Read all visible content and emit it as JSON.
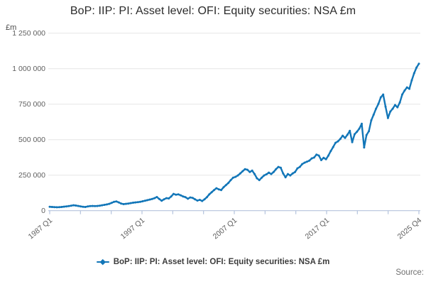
{
  "header": {
    "title": "BoP: IIP: PI: Asset level: OFI: Equity securities: NSA £m"
  },
  "axis_unit_label": "£m",
  "legend": {
    "label": "BoP: IIP: PI: Asset level: OFI: Equity securities: NSA £m"
  },
  "footer": {
    "source_label": "Source:"
  },
  "chart_data": {
    "type": "line",
    "title": "BoP: IIP: PI: Asset level: OFI: Equity securities: NSA £m",
    "xlabel": "",
    "ylabel": "£m",
    "x_start": "1987 Q1",
    "x_end": "2025 Q4",
    "frequency": "quarterly",
    "num_points": 156,
    "num_x_ticks": 13,
    "x_tick_labels": [
      {
        "tick_index": 0,
        "label": "1987 Q1"
      },
      {
        "tick_index": 3,
        "label": "1997 Q1"
      },
      {
        "tick_index": 6,
        "label": "2007 Q1"
      },
      {
        "tick_index": 9,
        "label": "2017 Q1"
      },
      {
        "tick_index": 12,
        "label": "2025 Q4"
      }
    ],
    "y_ticks": [
      0,
      250000,
      500000,
      750000,
      1000000,
      1250000
    ],
    "y_tick_label_format": "space-separated thousands",
    "ylim": [
      0,
      1250000
    ],
    "grid": "horizontal",
    "legend_position": "bottom",
    "colors": {
      "line": "#1276b8",
      "grid": "#e6e6e6",
      "axis": "#b4c3dd",
      "tick_label": "#5f5f5f",
      "title": "#2b2b2b"
    },
    "series": [
      {
        "name": "BoP: IIP: PI: Asset level: OFI: Equity securities: NSA £m",
        "values": [
          27000,
          26000,
          25000,
          24000,
          24500,
          26000,
          28000,
          30000,
          32000,
          35000,
          38000,
          36000,
          33000,
          30000,
          27000,
          26000,
          30000,
          32000,
          33000,
          32000,
          33000,
          35000,
          38000,
          41000,
          44000,
          48000,
          55000,
          62000,
          65000,
          58000,
          50000,
          46000,
          48000,
          50000,
          53000,
          56000,
          58000,
          60000,
          62000,
          66000,
          70000,
          74000,
          78000,
          82000,
          88000,
          96000,
          82000,
          70000,
          80000,
          88000,
          86000,
          100000,
          118000,
          112000,
          115000,
          108000,
          100000,
          95000,
          84000,
          93000,
          90000,
          80000,
          71000,
          76000,
          68000,
          80000,
          95000,
          115000,
          130000,
          145000,
          158000,
          150000,
          145000,
          165000,
          180000,
          195000,
          215000,
          232000,
          238000,
          248000,
          262000,
          278000,
          292000,
          288000,
          272000,
          282000,
          258000,
          228000,
          215000,
          232000,
          248000,
          256000,
          268000,
          258000,
          272000,
          292000,
          308000,
          302000,
          262000,
          235000,
          258000,
          248000,
          262000,
          272000,
          298000,
          308000,
          328000,
          338000,
          345000,
          352000,
          368000,
          374000,
          395000,
          388000,
          356000,
          372000,
          362000,
          388000,
          420000,
          448000,
          478000,
          488000,
          505000,
          528000,
          512000,
          535000,
          562000,
          482000,
          538000,
          556000,
          578000,
          612000,
          445000,
          532000,
          560000,
          636000,
          676000,
          718000,
          752000,
          798000,
          818000,
          732000,
          652000,
          698000,
          718000,
          744000,
          728000,
          762000,
          818000,
          846000,
          868000,
          858000,
          918000,
          968000,
          1008000,
          1035000
        ]
      }
    ]
  }
}
